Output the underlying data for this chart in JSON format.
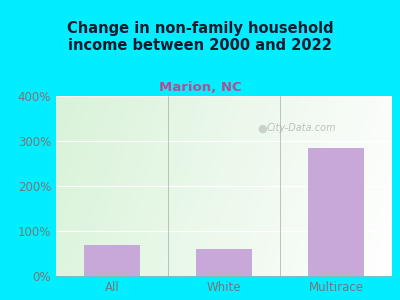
{
  "title": "Change in non-family household\nincome between 2000 and 2022",
  "subtitle": "Marion, NC",
  "categories": [
    "All",
    "White",
    "Multirace"
  ],
  "values": [
    68,
    60,
    285
  ],
  "bar_color": "#c8a8d8",
  "title_color": "#1a1a2e",
  "subtitle_color": "#b05090",
  "tick_color": "#777777",
  "background_outer": "#00eeff",
  "background_inner_topleft": "#d8f0d0",
  "background_inner_topright": "#e8eee8",
  "background_inner_bottom": "#eef8e8",
  "ylim": [
    0,
    400
  ],
  "yticks": [
    0,
    100,
    200,
    300,
    400
  ],
  "watermark": "City-Data.com",
  "bar_width": 0.5,
  "fig_width": 4.0,
  "fig_height": 3.0,
  "dpi": 100
}
